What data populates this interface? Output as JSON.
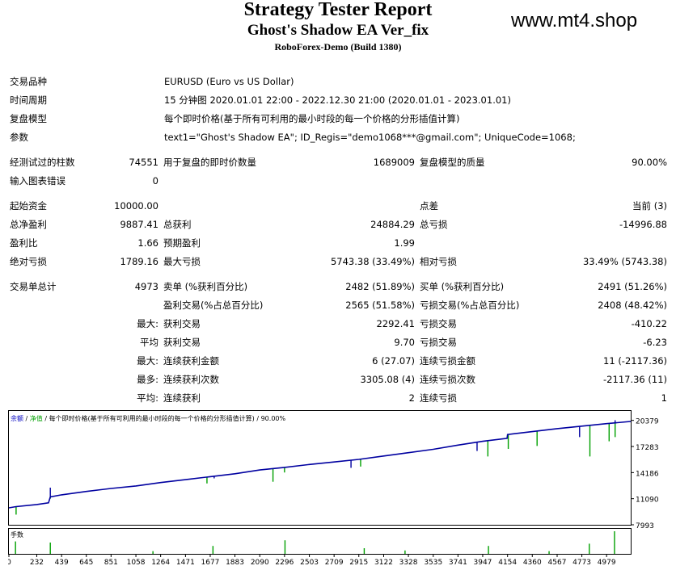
{
  "header": {
    "title": "Strategy Tester Report",
    "ea_name": "Ghost's Shadow EA Ver_fix",
    "server": "RoboForex-Demo (Build 1380)",
    "watermark": "www.mt4.shop"
  },
  "info": {
    "symbol_label": "交易品种",
    "symbol_value": "EURUSD (Euro vs US Dollar)",
    "period_label": "时间周期",
    "period_value": "15 分钟图 2020.01.01 22:00 - 2022.12.30 21:00 (2020.01.01 - 2023.01.01)",
    "model_label": "复盘模型",
    "model_value": "每个即时价格(基于所有可利用的最小时段的每一个价格的分形插值计算)",
    "params_label": "参数",
    "params_value": "text1=\"Ghost's Shadow EA\"; ID_Regis=\"demo1068***@gmail.com\"; UniqueCode=1068;"
  },
  "bars": {
    "bars_label": "经测试过的柱数",
    "bars_value": "74551",
    "ticks_label": "用于复盘的即时价数量",
    "ticks_value": "1689009",
    "quality_label": "复盘模型的质量",
    "quality_value": "90.00%",
    "errors_label": "输入图表错误",
    "errors_value": "0"
  },
  "money": {
    "deposit_label": "起始资金",
    "deposit_value": "10000.00",
    "spread_label": "点差",
    "spread_value": "当前 (3)",
    "net_label": "总净盈利",
    "net_value": "9887.41",
    "gross_profit_label": "总获利",
    "gross_profit_value": "24884.29",
    "gross_loss_label": "总亏损",
    "gross_loss_value": "-14996.88",
    "pf_label": "盈利比",
    "pf_value": "1.66",
    "payoff_label": "预期盈利",
    "payoff_value": "1.99",
    "abs_dd_label": "绝对亏损",
    "abs_dd_value": "1789.16",
    "max_dd_label": "最大亏损",
    "max_dd_value": "5743.38 (33.49%)",
    "rel_dd_label": "相对亏损",
    "rel_dd_value": "33.49% (5743.38)"
  },
  "trades": {
    "total_label": "交易单总计",
    "total_value": "4973",
    "short_label": "卖单 (%获利百分比)",
    "short_value": "2482 (51.89%)",
    "long_label": "买单 (%获利百分比)",
    "long_value": "2491 (51.26%)",
    "win_label": "盈利交易(%占总百分比)",
    "win_value": "2565 (51.58%)",
    "lose_label": "亏损交易(%占总百分比)",
    "lose_value": "2408 (48.42%)",
    "max_prefix": "最大:",
    "max_win_label": "获利交易",
    "max_win_value": "2292.41",
    "max_lose_label": "亏损交易",
    "max_lose_value": "-410.22",
    "avg_prefix": "平均",
    "avg_win_label": "获利交易",
    "avg_win_value": "9.70",
    "avg_lose_label": "亏损交易",
    "avg_lose_value": "-6.23",
    "max2_prefix": "最大:",
    "cons_win_amt_label": "连续获利金额",
    "cons_win_amt_value": "6 (27.07)",
    "cons_lose_amt_label": "连续亏损金额",
    "cons_lose_amt_value": "11 (-2117.36)",
    "most_prefix": "最多:",
    "cons_win_cnt_label": "连续获利次数",
    "cons_win_cnt_value": "3305.08 (4)",
    "cons_lose_cnt_label": "连续亏损次数",
    "cons_lose_cnt_value": "-2117.36 (11)",
    "avg2_prefix": "平均:",
    "avg_cons_win_label": "连续获利",
    "avg_cons_win_value": "2",
    "avg_cons_lose_label": "连续亏损",
    "avg_cons_lose_value": "1"
  },
  "chart_data": {
    "type": "line",
    "legend": [
      "余额",
      "净值",
      "每个即时价格(基于所有可利用的最小时段的每一个价格的分形插值计算)",
      "90.00%"
    ],
    "y_ticks": [
      "20379",
      "17283",
      "14186",
      "11090",
      "7993"
    ],
    "x_ticks": [
      "0",
      "232",
      "439",
      "645",
      "851",
      "1058",
      "1264",
      "1471",
      "1677",
      "1883",
      "2090",
      "2296",
      "2503",
      "2709",
      "2915",
      "3122",
      "3328",
      "3535",
      "3741",
      "3947",
      "4154",
      "4360",
      "4567",
      "4773",
      "4979"
    ],
    "lots_label": "手数",
    "ylim": [
      7993,
      20379
    ],
    "balance": [
      [
        0,
        10000
      ],
      [
        60,
        10150
      ],
      [
        232,
        10400
      ],
      [
        330,
        10600
      ],
      [
        345,
        11300
      ],
      [
        439,
        11550
      ],
      [
        645,
        11950
      ],
      [
        851,
        12300
      ],
      [
        1058,
        12600
      ],
      [
        1264,
        13000
      ],
      [
        1471,
        13350
      ],
      [
        1677,
        13700
      ],
      [
        1883,
        14050
      ],
      [
        2090,
        14500
      ],
      [
        2296,
        14800
      ],
      [
        2503,
        15150
      ],
      [
        2709,
        15450
      ],
      [
        2915,
        15750
      ],
      [
        3122,
        16150
      ],
      [
        3328,
        16550
      ],
      [
        3535,
        16950
      ],
      [
        3741,
        17450
      ],
      [
        3947,
        17900
      ],
      [
        4150,
        18250
      ],
      [
        4154,
        18700
      ],
      [
        4360,
        19050
      ],
      [
        4567,
        19400
      ],
      [
        4773,
        19700
      ],
      [
        4979,
        20000
      ],
      [
        5180,
        20250
      ]
    ],
    "equity_dips": [
      [
        60,
        9200
      ],
      [
        345,
        11100
      ],
      [
        1650,
        12900
      ],
      [
        2200,
        13100
      ],
      [
        2296,
        14200
      ],
      [
        2930,
        14900
      ],
      [
        3990,
        16100
      ],
      [
        4160,
        17000
      ],
      [
        4400,
        17350
      ],
      [
        4840,
        16100
      ],
      [
        5000,
        17900
      ],
      [
        5050,
        18400
      ]
    ],
    "equity_spikes": [
      [
        345,
        12400
      ],
      [
        1710,
        13500
      ],
      [
        2850,
        14750
      ],
      [
        3900,
        16750
      ],
      [
        4754,
        18400
      ],
      [
        5050,
        20400
      ]
    ],
    "lot_bars": [
      [
        55,
        0.55
      ],
      [
        345,
        0.5
      ],
      [
        1700,
        0.35
      ],
      [
        2300,
        0.6
      ],
      [
        2960,
        0.25
      ],
      [
        3995,
        0.35
      ],
      [
        4835,
        0.45
      ],
      [
        5045,
        1.0
      ],
      [
        3300,
        0.15
      ],
      [
        1200,
        0.12
      ],
      [
        4500,
        0.12
      ]
    ]
  }
}
